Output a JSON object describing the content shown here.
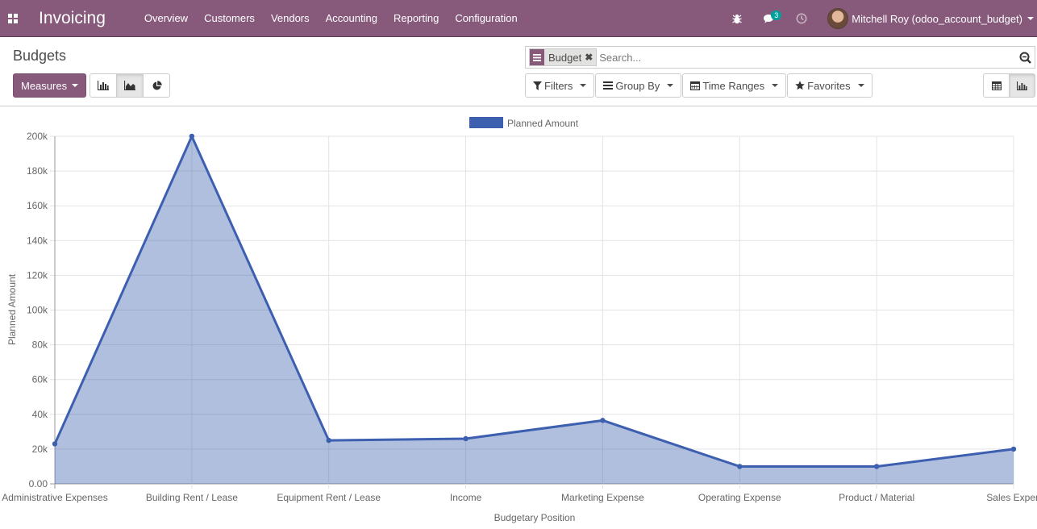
{
  "navbar": {
    "app_title": "Invoicing",
    "menu": [
      "Overview",
      "Customers",
      "Vendors",
      "Accounting",
      "Reporting",
      "Configuration"
    ],
    "messages_count": "3",
    "user_name": "Mitchell Roy (odoo_account_budget)",
    "icons": [
      "apps-icon",
      "bug-icon",
      "chat-icon",
      "clock-icon"
    ],
    "bar_color": "#875a7b"
  },
  "control": {
    "breadcrumb": "Budgets",
    "facet_value": "Budget",
    "search_placeholder": "Search...",
    "measures_label": "Measures",
    "filters_label": "Filters",
    "group_by_label": "Group By",
    "time_ranges_label": "Time Ranges",
    "favorites_label": "Favorites",
    "active_mode": "line"
  },
  "chart_data": {
    "type": "area",
    "categories": [
      "Administrative Expenses",
      "Building Rent / Lease",
      "Equipment Rent / Lease",
      "Income",
      "Marketing Expense",
      "Operating Expense",
      "Product / Material",
      "Sales Expen"
    ],
    "series": [
      {
        "name": "Planned Amount",
        "values": [
          23000,
          200000,
          25000,
          26000,
          36500,
          10000,
          10000,
          20000
        ],
        "color": "#3c5fb0"
      }
    ],
    "xlabel": "Budgetary Position",
    "ylabel": "Planned Amount",
    "ylim": [
      0,
      200000
    ],
    "yticks": [
      "0.00",
      "20k",
      "40k",
      "60k",
      "80k",
      "100k",
      "120k",
      "140k",
      "160k",
      "180k",
      "200k"
    ],
    "grid": true,
    "legend": "top-center"
  }
}
